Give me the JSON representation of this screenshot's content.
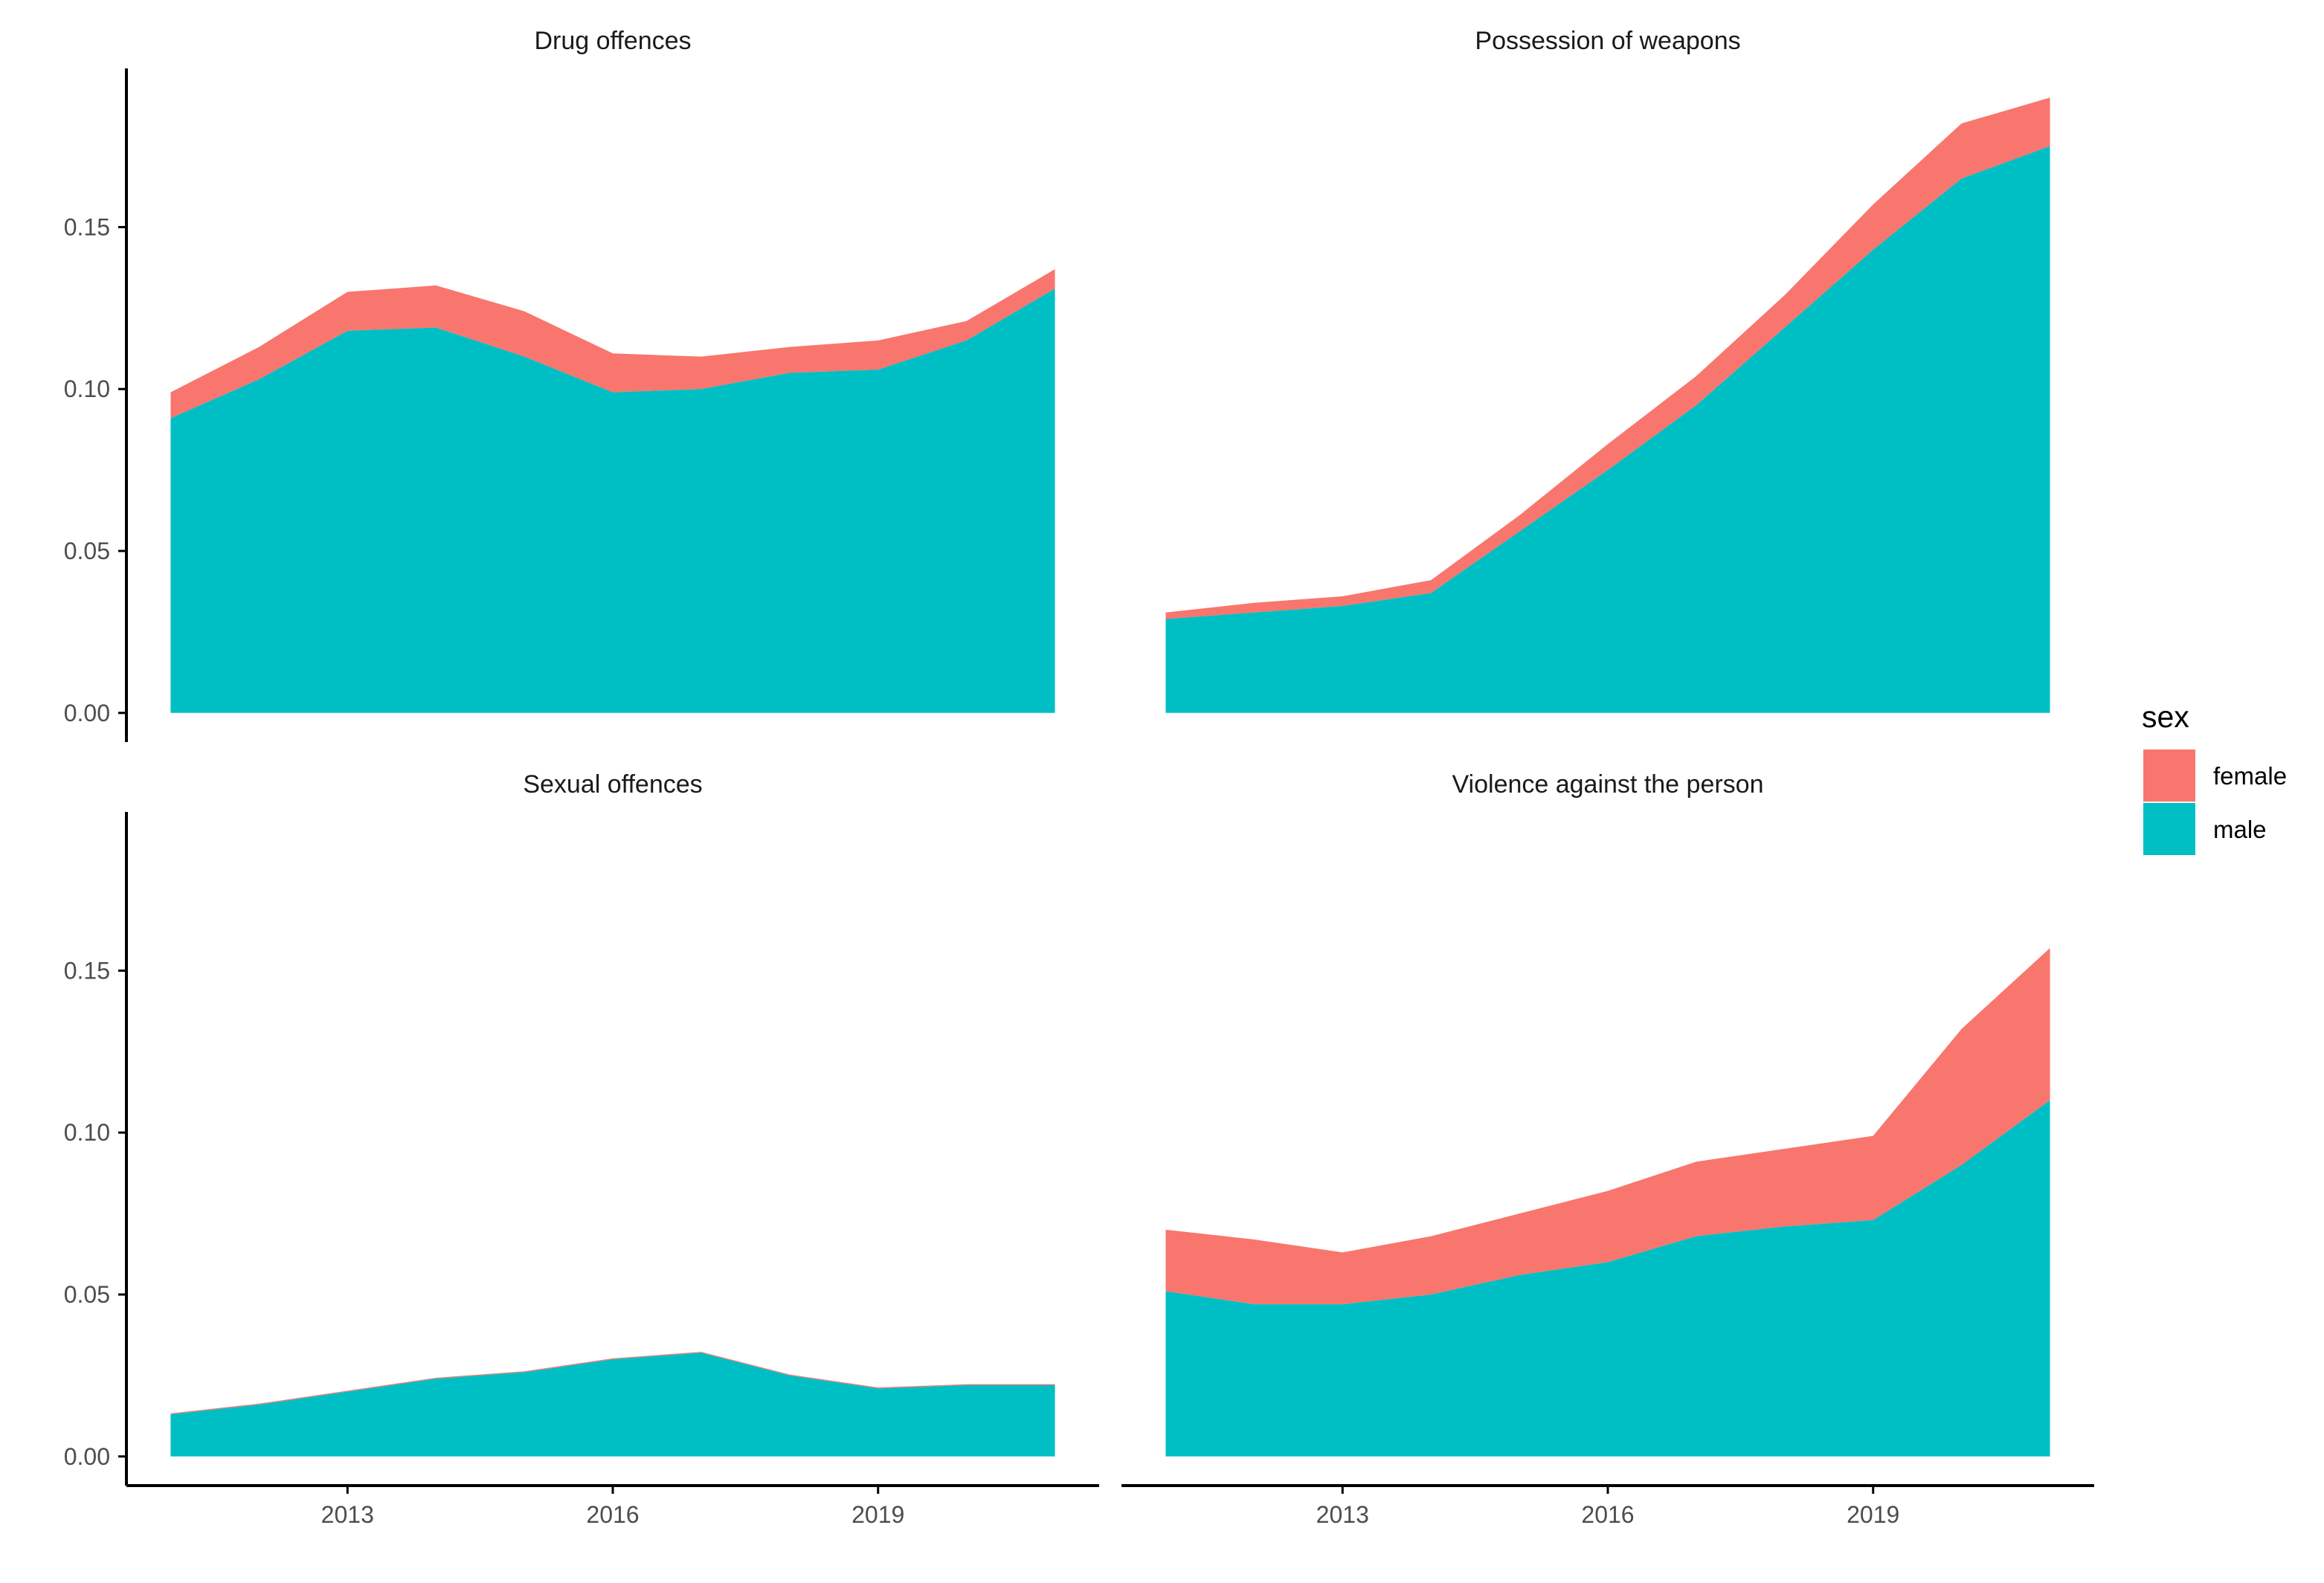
{
  "chart_data": {
    "type": "area",
    "stacked": true,
    "facets": [
      {
        "title": "Drug offences",
        "x": [
          2011,
          2012,
          2013,
          2014,
          2015,
          2016,
          2017,
          2018,
          2019,
          2020,
          2021
        ],
        "series": [
          {
            "name": "male",
            "values": [
              0.091,
              0.103,
              0.118,
              0.119,
              0.11,
              0.099,
              0.1,
              0.105,
              0.106,
              0.115,
              0.131
            ]
          },
          {
            "name": "female",
            "values": [
              0.008,
              0.01,
              0.012,
              0.013,
              0.014,
              0.012,
              0.01,
              0.008,
              0.009,
              0.006,
              0.006
            ]
          }
        ]
      },
      {
        "title": "Possession of weapons",
        "x": [
          2011,
          2012,
          2013,
          2014,
          2015,
          2016,
          2017,
          2018,
          2019,
          2020,
          2021
        ],
        "series": [
          {
            "name": "male",
            "values": [
              0.029,
              0.031,
              0.033,
              0.037,
              0.056,
              0.075,
              0.095,
              0.119,
              0.143,
              0.165,
              0.175
            ]
          },
          {
            "name": "female",
            "values": [
              0.002,
              0.003,
              0.003,
              0.004,
              0.005,
              0.008,
              0.009,
              0.01,
              0.014,
              0.017,
              0.015
            ]
          }
        ]
      },
      {
        "title": "Sexual offences",
        "x": [
          2011,
          2012,
          2013,
          2014,
          2015,
          2016,
          2017,
          2018,
          2019,
          2020,
          2021
        ],
        "series": [
          {
            "name": "male",
            "values": [
              0.013,
              0.016,
              0.02,
              0.024,
              0.026,
              0.03,
              0.032,
              0.025,
              0.021,
              0.022,
              0.022
            ]
          },
          {
            "name": "female",
            "values": [
              0.0003,
              0.0003,
              0.0003,
              0.0003,
              0.0003,
              0.0003,
              0.0003,
              0.0003,
              0.0003,
              0.0003,
              0.0003
            ]
          }
        ]
      },
      {
        "title": "Violence against the person",
        "x": [
          2011,
          2012,
          2013,
          2014,
          2015,
          2016,
          2017,
          2018,
          2019,
          2020,
          2021
        ],
        "series": [
          {
            "name": "male",
            "values": [
              0.051,
              0.047,
              0.047,
              0.05,
              0.056,
              0.06,
              0.068,
              0.071,
              0.073,
              0.09,
              0.11
            ]
          },
          {
            "name": "female",
            "values": [
              0.019,
              0.02,
              0.016,
              0.018,
              0.019,
              0.022,
              0.023,
              0.024,
              0.026,
              0.042,
              0.047
            ]
          }
        ]
      }
    ],
    "xlim": [
      2010.5,
      2021.5
    ],
    "ylim": [
      -0.009,
      0.199
    ],
    "x_ticks": [
      2013,
      2016,
      2019
    ],
    "x_tick_labels": [
      "2013",
      "2016",
      "2019"
    ],
    "y_ticks": [
      0.0,
      0.05,
      0.1,
      0.15
    ],
    "y_tick_labels": [
      "0.00",
      "0.05",
      "0.10",
      "0.15"
    ],
    "xlabel": "",
    "ylabel": "",
    "legend": {
      "title": "sex",
      "position": "right",
      "entries": [
        {
          "label": "female",
          "color": "#F8766D"
        },
        {
          "label": "male",
          "color": "#00BFC4"
        }
      ]
    },
    "colors": {
      "female": "#F8766D",
      "male": "#00BFC4"
    },
    "grid": false
  }
}
